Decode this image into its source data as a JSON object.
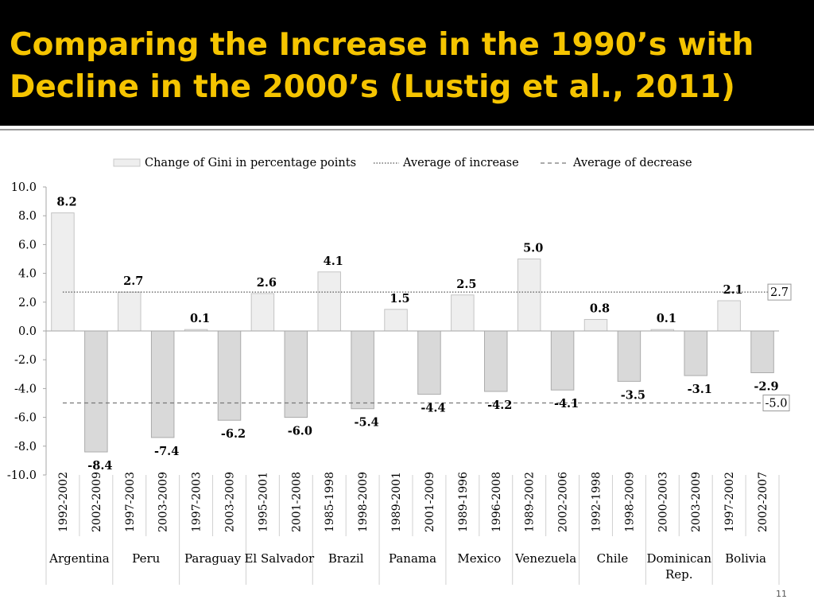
{
  "title": "Comparing the Increase in the 1990’s with Decline in the 2000’s (Lustig et al., 2011)",
  "slide_number": "11",
  "colors": {
    "header_bg": "#000000",
    "title": "#f5c400",
    "bar_increase": "#eeeeee",
    "bar_decrease": "#d9d9d9"
  },
  "chart_data": {
    "type": "bar",
    "title": "",
    "xlabel": "",
    "ylabel": "",
    "ylim": [
      -10,
      10
    ],
    "yticks": [
      "10.0",
      "8.0",
      "6.0",
      "4.0",
      "2.0",
      "0.0",
      "-2.0",
      "-4.0",
      "-6.0",
      "-8.0",
      "-10.0"
    ],
    "legend": [
      "Change of Gini in percentage points",
      "Average of increase",
      "Average of decrease"
    ],
    "legend_position": "top",
    "countries": [
      {
        "name": "Argentina",
        "periods": [
          "1992-2002",
          "2002-2009"
        ],
        "values": [
          8.2,
          -8.4
        ]
      },
      {
        "name": "Peru",
        "periods": [
          "1997-2003",
          "2003-2009"
        ],
        "values": [
          2.7,
          -7.4
        ]
      },
      {
        "name": "Paraguay",
        "periods": [
          "1997-2003",
          "2003-2009"
        ],
        "values": [
          0.1,
          -6.2
        ]
      },
      {
        "name": "El Salvador",
        "periods": [
          "1995-2001",
          "2001-2008"
        ],
        "values": [
          2.6,
          -6.0
        ]
      },
      {
        "name": "Brazil",
        "periods": [
          "1985-1998",
          "1998-2009"
        ],
        "values": [
          4.1,
          -5.4
        ]
      },
      {
        "name": "Panama",
        "periods": [
          "1989-2001",
          "2001-2009"
        ],
        "values": [
          1.5,
          -4.4
        ]
      },
      {
        "name": "Mexico",
        "periods": [
          "1989-1996",
          "1996-2008"
        ],
        "values": [
          2.5,
          -4.2
        ]
      },
      {
        "name": "Venezuela",
        "periods": [
          "1989-2002",
          "2002-2006"
        ],
        "values": [
          5.0,
          -4.1
        ]
      },
      {
        "name": "Chile",
        "periods": [
          "1992-1998",
          "1998-2009"
        ],
        "values": [
          0.8,
          -3.5
        ]
      },
      {
        "name": "Dominican Rep.",
        "periods": [
          "2000-2003",
          "2003-2009"
        ],
        "values": [
          0.1,
          -3.1
        ]
      },
      {
        "name": "Bolivia",
        "periods": [
          "1997-2002",
          "2002-2007"
        ],
        "values": [
          2.1,
          -2.9
        ]
      }
    ],
    "average_increase": 2.7,
    "average_decrease": -5.0,
    "average_increase_label": "2.7",
    "average_decrease_label": "-5.0"
  }
}
